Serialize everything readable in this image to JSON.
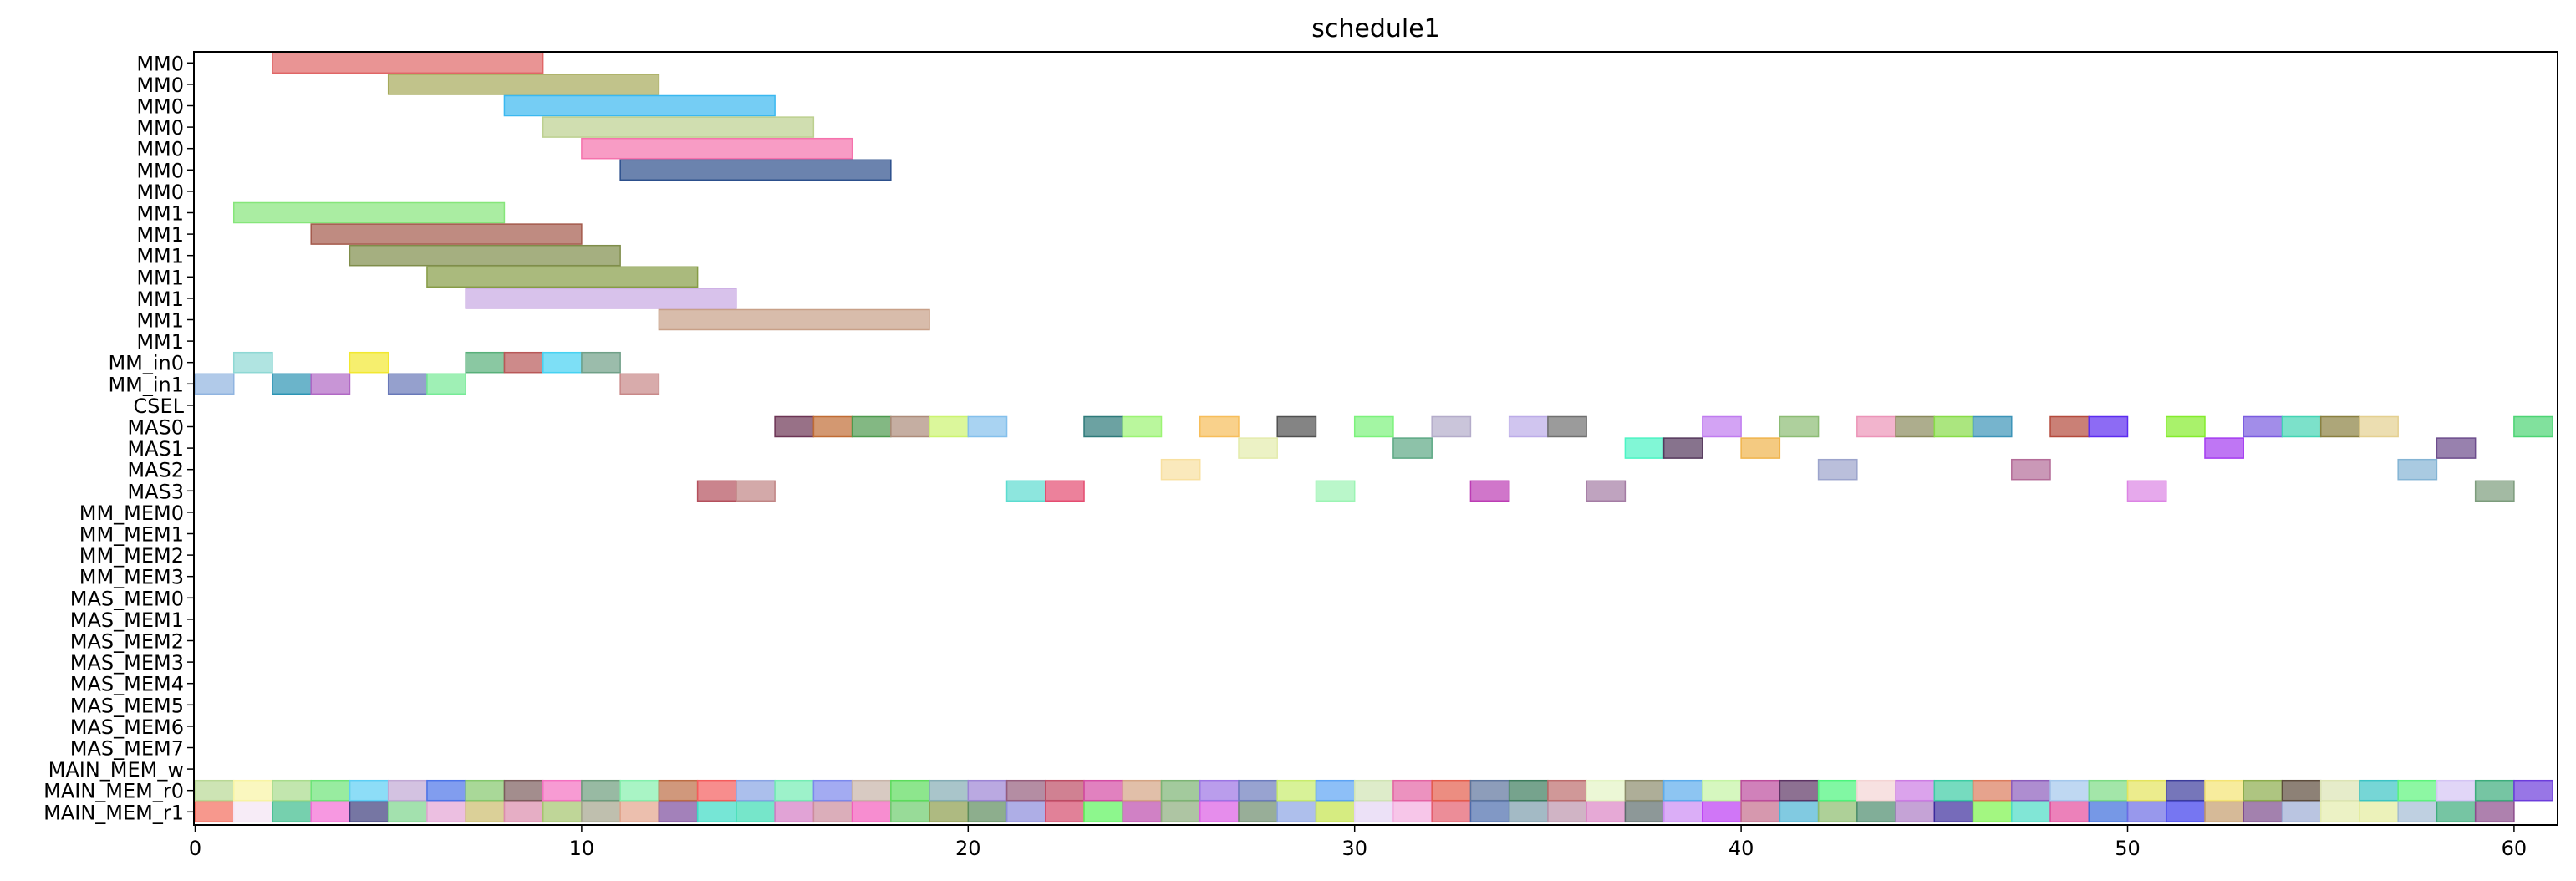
{
  "chart_data": {
    "type": "gantt",
    "title": "schedule1",
    "xlabel": "",
    "ylabel": "",
    "xlim": [
      0,
      61
    ],
    "x_ticks": [
      0,
      10,
      20,
      30,
      40,
      50,
      60
    ],
    "grid": false,
    "rows": [
      "MM0",
      "MM0",
      "MM0",
      "MM0",
      "MM0",
      "MM0",
      "MM0",
      "MM1",
      "MM1",
      "MM1",
      "MM1",
      "MM1",
      "MM1",
      "MM1",
      "MM_in0",
      "MM_in1",
      "CSEL",
      "MAS0",
      "MAS1",
      "MAS2",
      "MAS3",
      "MM_MEM0",
      "MM_MEM1",
      "MM_MEM2",
      "MM_MEM3",
      "MAS_MEM0",
      "MAS_MEM1",
      "MAS_MEM2",
      "MAS_MEM3",
      "MAS_MEM4",
      "MAS_MEM5",
      "MAS_MEM6",
      "MAS_MEM7",
      "MAIN_MEM_w",
      "MAIN_MEM_r0",
      "MAIN_MEM_r1"
    ],
    "tasks": [
      {
        "row": 0,
        "start": 2,
        "end": 9,
        "color": "#e06666"
      },
      {
        "row": 1,
        "start": 5,
        "end": 12,
        "color": "#a6aa5a"
      },
      {
        "row": 2,
        "start": 8,
        "end": 15,
        "color": "#3ab8f0"
      },
      {
        "row": 3,
        "start": 9,
        "end": 16,
        "color": "#bcd08f"
      },
      {
        "row": 4,
        "start": 10,
        "end": 17,
        "color": "#f572ac"
      },
      {
        "row": 5,
        "start": 11,
        "end": 18,
        "color": "#2c4f8c"
      },
      {
        "row": 7,
        "start": 1,
        "end": 8,
        "color": "#86e67a"
      },
      {
        "row": 8,
        "start": 3,
        "end": 10,
        "color": "#a45a4c"
      },
      {
        "row": 9,
        "start": 4,
        "end": 11,
        "color": "#7f8d4a"
      },
      {
        "row": 10,
        "start": 6,
        "end": 13,
        "color": "#869c46"
      },
      {
        "row": 11,
        "start": 7,
        "end": 14,
        "color": "#c8a8e2"
      },
      {
        "row": 12,
        "start": 12,
        "end": 19,
        "color": "#c8a088"
      },
      {
        "row": 14,
        "start": 1,
        "end": 2,
        "color": "#8ed8d4"
      },
      {
        "row": 14,
        "start": 4,
        "end": 5,
        "color": "#f2e830"
      },
      {
        "row": 14,
        "start": 7,
        "end": 8,
        "color": "#58b07a"
      },
      {
        "row": 14,
        "start": 8,
        "end": 9,
        "color": "#b85858"
      },
      {
        "row": 14,
        "start": 9,
        "end": 10,
        "color": "#46d2f2"
      },
      {
        "row": 14,
        "start": 10,
        "end": 11,
        "color": "#70a088"
      },
      {
        "row": 15,
        "start": 0,
        "end": 1,
        "color": "#90b4e0"
      },
      {
        "row": 15,
        "start": 2,
        "end": 3,
        "color": "#2c94b4"
      },
      {
        "row": 15,
        "start": 3,
        "end": 4,
        "color": "#b068c4"
      },
      {
        "row": 15,
        "start": 5,
        "end": 6,
        "color": "#6878b8"
      },
      {
        "row": 15,
        "start": 6,
        "end": 7,
        "color": "#76ea96"
      },
      {
        "row": 15,
        "start": 11,
        "end": 12,
        "color": "#c88888"
      },
      {
        "row": 17,
        "start": 15,
        "end": 16,
        "color": "#6c3454"
      },
      {
        "row": 17,
        "start": 16,
        "end": 17,
        "color": "#c06c34"
      },
      {
        "row": 17,
        "start": 17,
        "end": 18,
        "color": "#4e9a4e"
      },
      {
        "row": 17,
        "start": 18,
        "end": 19,
        "color": "#ad8c7a"
      },
      {
        "row": 17,
        "start": 19,
        "end": 20,
        "color": "#ccf470"
      },
      {
        "row": 17,
        "start": 20,
        "end": 21,
        "color": "#84c0ec"
      },
      {
        "row": 17,
        "start": 23,
        "end": 24,
        "color": "#2e7a7a"
      },
      {
        "row": 17,
        "start": 24,
        "end": 25,
        "color": "#9cf474"
      },
      {
        "row": 17,
        "start": 26,
        "end": 27,
        "color": "#f7be5a"
      },
      {
        "row": 17,
        "start": 28,
        "end": 29,
        "color": "#505050"
      },
      {
        "row": 17,
        "start": 30,
        "end": 31,
        "color": "#7cf27c"
      },
      {
        "row": 17,
        "start": 32,
        "end": 33,
        "color": "#b4acca"
      },
      {
        "row": 17,
        "start": 34,
        "end": 35,
        "color": "#bcace8"
      },
      {
        "row": 17,
        "start": 35,
        "end": 36,
        "color": "#707070"
      },
      {
        "row": 17,
        "start": 39,
        "end": 40,
        "color": "#c07cf0"
      },
      {
        "row": 17,
        "start": 41,
        "end": 42,
        "color": "#8cbc74"
      },
      {
        "row": 17,
        "start": 43,
        "end": 44,
        "color": "#ec94b8"
      },
      {
        "row": 17,
        "start": 44,
        "end": 45,
        "color": "#8a8a5c"
      },
      {
        "row": 17,
        "start": 45,
        "end": 46,
        "color": "#88dc48"
      },
      {
        "row": 17,
        "start": 46,
        "end": 47,
        "color": "#3c94b8"
      },
      {
        "row": 17,
        "start": 48,
        "end": 49,
        "color": "#b44a3c"
      },
      {
        "row": 17,
        "start": 49,
        "end": 50,
        "color": "#5c2cf0"
      },
      {
        "row": 17,
        "start": 51,
        "end": 52,
        "color": "#84ec2c"
      },
      {
        "row": 17,
        "start": 53,
        "end": 54,
        "color": "#7a5ce0"
      },
      {
        "row": 17,
        "start": 54,
        "end": 55,
        "color": "#44d4b4"
      },
      {
        "row": 17,
        "start": 55,
        "end": 56,
        "color": "#8a8040"
      },
      {
        "row": 17,
        "start": 56,
        "end": 57,
        "color": "#e4d090"
      },
      {
        "row": 17,
        "start": 60,
        "end": 61,
        "color": "#4cd474"
      },
      {
        "row": 18,
        "start": 27,
        "end": 28,
        "color": "#e4ecac"
      },
      {
        "row": 18,
        "start": 31,
        "end": 32,
        "color": "#5ca884"
      },
      {
        "row": 18,
        "start": 37,
        "end": 38,
        "color": "#4cf4c4"
      },
      {
        "row": 18,
        "start": 38,
        "end": 39,
        "color": "#54385c"
      },
      {
        "row": 18,
        "start": 40,
        "end": 41,
        "color": "#f0b44c"
      },
      {
        "row": 18,
        "start": 52,
        "end": 53,
        "color": "#a43cf0"
      },
      {
        "row": 18,
        "start": 58,
        "end": 59,
        "color": "#6c4c8c"
      },
      {
        "row": 19,
        "start": 25,
        "end": 26,
        "color": "#f8e0a0"
      },
      {
        "row": 19,
        "start": 42,
        "end": 43,
        "color": "#9ca4cc"
      },
      {
        "row": 19,
        "start": 47,
        "end": 48,
        "color": "#b46c98"
      },
      {
        "row": 19,
        "start": 57,
        "end": 58,
        "color": "#84b4d4"
      },
      {
        "row": 20,
        "start": 13,
        "end": 14,
        "color": "#b4505c"
      },
      {
        "row": 20,
        "start": 14,
        "end": 15,
        "color": "#c08484"
      },
      {
        "row": 20,
        "start": 21,
        "end": 22,
        "color": "#5cdcd0"
      },
      {
        "row": 20,
        "start": 22,
        "end": 23,
        "color": "#e44c70"
      },
      {
        "row": 20,
        "start": 29,
        "end": 30,
        "color": "#9cf4b4"
      },
      {
        "row": 20,
        "start": 33,
        "end": 34,
        "color": "#bc3cb4"
      },
      {
        "row": 20,
        "start": 36,
        "end": 37,
        "color": "#a47ca4"
      },
      {
        "row": 20,
        "start": 50,
        "end": 51,
        "color": "#dc84e4"
      },
      {
        "row": 20,
        "start": 59,
        "end": 60,
        "color": "#7c9c7c"
      }
    ],
    "dense_rows": [
      {
        "row": 34,
        "colors": [
          "#b8d894",
          "#f8f4a4",
          "#a8dc8c",
          "#6ce478",
          "#5ccef4",
          "#c0a8d4",
          "#4c74e8",
          "#84c86c",
          "#7c5c5c",
          "#f470c0",
          "#6c9c7c",
          "#84f0ac",
          "#bc6c44",
          "#f45c5c",
          "#88a4e4",
          "#74ecb4",
          "#7c88ec",
          "#c8b4a8",
          "#5cdc5c",
          "#84acb4",
          "#9c84d4",
          "#945c7c",
          "#bc4c64",
          "#d44ca4",
          "#d4a484",
          "#7cb474",
          "#9c74e4",
          "#6c7cbc",
          "#c8ec6c",
          "#5ca4f4",
          "#d0e4b4",
          "#e464a4",
          "#e45c4c",
          "#5c749c",
          "#3c7c5c",
          "#bc6c6c",
          "#e4f4c4",
          "#8c8c6c",
          "#5cacec",
          "#c4f4a4",
          "#bc4c9c",
          "#5c3464",
          "#4cf47c",
          "#f4d4d4",
          "#cc7ce4",
          "#3ccca4",
          "#dc7c5c",
          "#8c5cbc",
          "#a4c8ec",
          "#7cdc84",
          "#e4e45c",
          "#3c3c9c",
          "#f4e474",
          "#8cac4c",
          "#5c4c3c",
          "#dce4b4",
          "#3cc4c4",
          "#5cf47c",
          "#d4c4f4",
          "#3cac7c",
          "#6c3cdc"
        ]
      },
      {
        "row": 35,
        "colors": [
          "#f46c5c",
          "#f4e4f4",
          "#3cbc8c",
          "#f46cd4",
          "#3c3c7c",
          "#7cd48c",
          "#e4a4d4",
          "#ccbc6c",
          "#dc8cac",
          "#a4c46c",
          "#a4a48c",
          "#e4a48c",
          "#7c4c9c",
          "#3cdcc4",
          "#3cdcb4",
          "#d47cc4",
          "#cc8c9c",
          "#f45cbc",
          "#6ccc6c",
          "#8c9c4c",
          "#5c8c5c",
          "#8c8cdc",
          "#d44c6c",
          "#5cf45c",
          "#bc4cac",
          "#8cac7c",
          "#dc5ce4",
          "#6c8c6c",
          "#8ca4e4",
          "#c4e44c",
          "#e4d4f4",
          "#f4aee0",
          "#e45c6c",
          "#4c6cac",
          "#7c9cac",
          "#bc94ac",
          "#dc84c4",
          "#5c6c6c",
          "#cc8cf4",
          "#bc3cf4",
          "#c46c8c",
          "#4cb4d4",
          "#8cbc6c",
          "#4c8c6c",
          "#ac7cc4",
          "#3c2c9c",
          "#7cf44c",
          "#4cdcc4",
          "#e44c9c",
          "#3c6cdc",
          "#6c6ce4",
          "#3c3cec",
          "#c49c6c",
          "#7c4c8c",
          "#9cacd4",
          "#e4ecac",
          "#e4ec9c",
          "#a4bcd4",
          "#3cac7c",
          "#8c4c8c"
        ]
      }
    ]
  }
}
